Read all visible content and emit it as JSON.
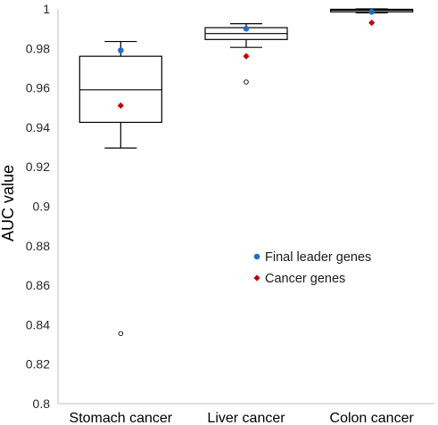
{
  "chart_data": {
    "type": "box",
    "ylabel": "AUC value",
    "ylim": [
      0.8,
      1.0
    ],
    "yticks": [
      0.8,
      0.82,
      0.84,
      0.86,
      0.88,
      0.9,
      0.92,
      0.94,
      0.96,
      0.98,
      1
    ],
    "ytick_labels": [
      "0.8",
      "0.82",
      "0.84",
      "0.86",
      "0.88",
      "0.9",
      "0.92",
      "0.94",
      "0.96",
      "0.98",
      "1"
    ],
    "grid": false,
    "legend_position": "right-middle",
    "categories": [
      "Stomach cancer",
      "Liver cancer",
      "Colon cancer"
    ],
    "boxes": [
      {
        "whisker_low": 0.9295,
        "q1": 0.9425,
        "median": 0.959,
        "q3": 0.976,
        "whisker_high": 0.9835,
        "outliers": [
          0.8355
        ]
      },
      {
        "whisker_low": 0.9805,
        "q1": 0.9845,
        "median": 0.9875,
        "q3": 0.9905,
        "whisker_high": 0.9925,
        "outliers": [
          0.963
        ]
      },
      {
        "whisker_low": 0.998,
        "q1": 0.9985,
        "median": 0.9993,
        "q3": 0.9998,
        "whisker_high": 1.0,
        "outliers": []
      }
    ],
    "series": [
      {
        "name": "Final leader genes",
        "marker": "circle",
        "color": "#1f6fc5",
        "values": [
          0.979,
          0.99,
          0.9985
        ]
      },
      {
        "name": "Cancer genes",
        "marker": "diamond",
        "color": "#c00000",
        "values": [
          0.951,
          0.976,
          0.993
        ]
      }
    ]
  }
}
